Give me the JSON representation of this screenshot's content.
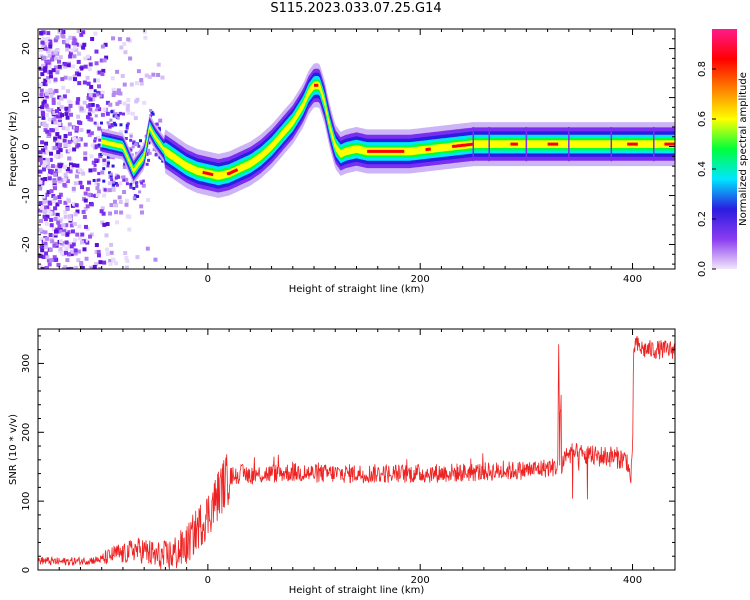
{
  "title": "S115.2023.033.07.25.G14",
  "chart_data": [
    {
      "type": "heatmap",
      "xlabel": "Height of straight line (km)",
      "ylabel": "Frequency (Hz)",
      "xlim": [
        -160,
        440
      ],
      "ylim": [
        -25,
        24
      ],
      "x_ticks": [
        0,
        200,
        400
      ],
      "y_ticks": [
        -20,
        -10,
        0,
        10,
        20
      ],
      "colorbar": {
        "label": "Normalized spectral amplitude",
        "range": [
          0,
          0.96
        ],
        "ticks": [
          "0.0",
          "0.2",
          "0.4",
          "0.6",
          "0.8"
        ],
        "colors": [
          "#f2e6fb",
          "#8a3cf0",
          "#2a1ce0",
          "#00e6ff",
          "#00ff3c",
          "#ffff00",
          "#ff8000",
          "#ff0000",
          "#ff1a8c"
        ]
      },
      "ridge": {
        "x": [
          -100,
          -90,
          -80,
          -70,
          -60,
          -55,
          -50,
          -40,
          -30,
          -20,
          -10,
          0,
          10,
          20,
          30,
          40,
          50,
          60,
          70,
          80,
          90,
          95,
          100,
          105,
          110,
          115,
          120,
          125,
          130,
          140,
          150,
          170,
          190,
          210,
          230,
          250,
          280,
          320,
          360,
          400,
          440
        ],
        "y": [
          1,
          0.5,
          0,
          -5,
          -2,
          4,
          2,
          -1,
          -2.5,
          -4,
          -5,
          -5.5,
          -6,
          -5.5,
          -4.5,
          -3.5,
          -2,
          0,
          2.5,
          5,
          8.5,
          11,
          12.5,
          12.5,
          9,
          4,
          0,
          -1.5,
          -1,
          -0.5,
          -1,
          -1,
          -1,
          -0.5,
          0,
          0.5,
          0.5,
          0.5,
          0.5,
          0.5,
          0.5
        ]
      }
    },
    {
      "type": "line",
      "xlabel": "Height of straight line (km)",
      "ylabel": "SNR (10 * v/v)",
      "xlim": [
        -160,
        440
      ],
      "ylim": [
        0,
        350
      ],
      "x_ticks": [
        0,
        200,
        400
      ],
      "y_ticks": [
        0,
        100,
        200,
        300
      ],
      "series": [
        {
          "color": "#ee2222",
          "x": [
            -160,
            -140,
            -120,
            -100,
            -85,
            -80,
            -70,
            -60,
            -50,
            -40,
            -30,
            -20,
            -10,
            0,
            5,
            10,
            15,
            20,
            30,
            40,
            60,
            80,
            100,
            150,
            200,
            250,
            300,
            330,
            331,
            333,
            336,
            340,
            360,
            380,
            395,
            398,
            400,
            401,
            403,
            405,
            410,
            440
          ],
          "y": [
            14,
            12,
            13,
            15,
            25,
            22,
            30,
            28,
            20,
            18,
            25,
            35,
            60,
            80,
            95,
            110,
            125,
            135,
            140,
            138,
            140,
            142,
            140,
            140,
            140,
            142,
            145,
            150,
            330,
            150,
            165,
            170,
            165,
            165,
            160,
            130,
            160,
            320,
            330,
            325,
            320,
            320
          ]
        }
      ]
    }
  ]
}
